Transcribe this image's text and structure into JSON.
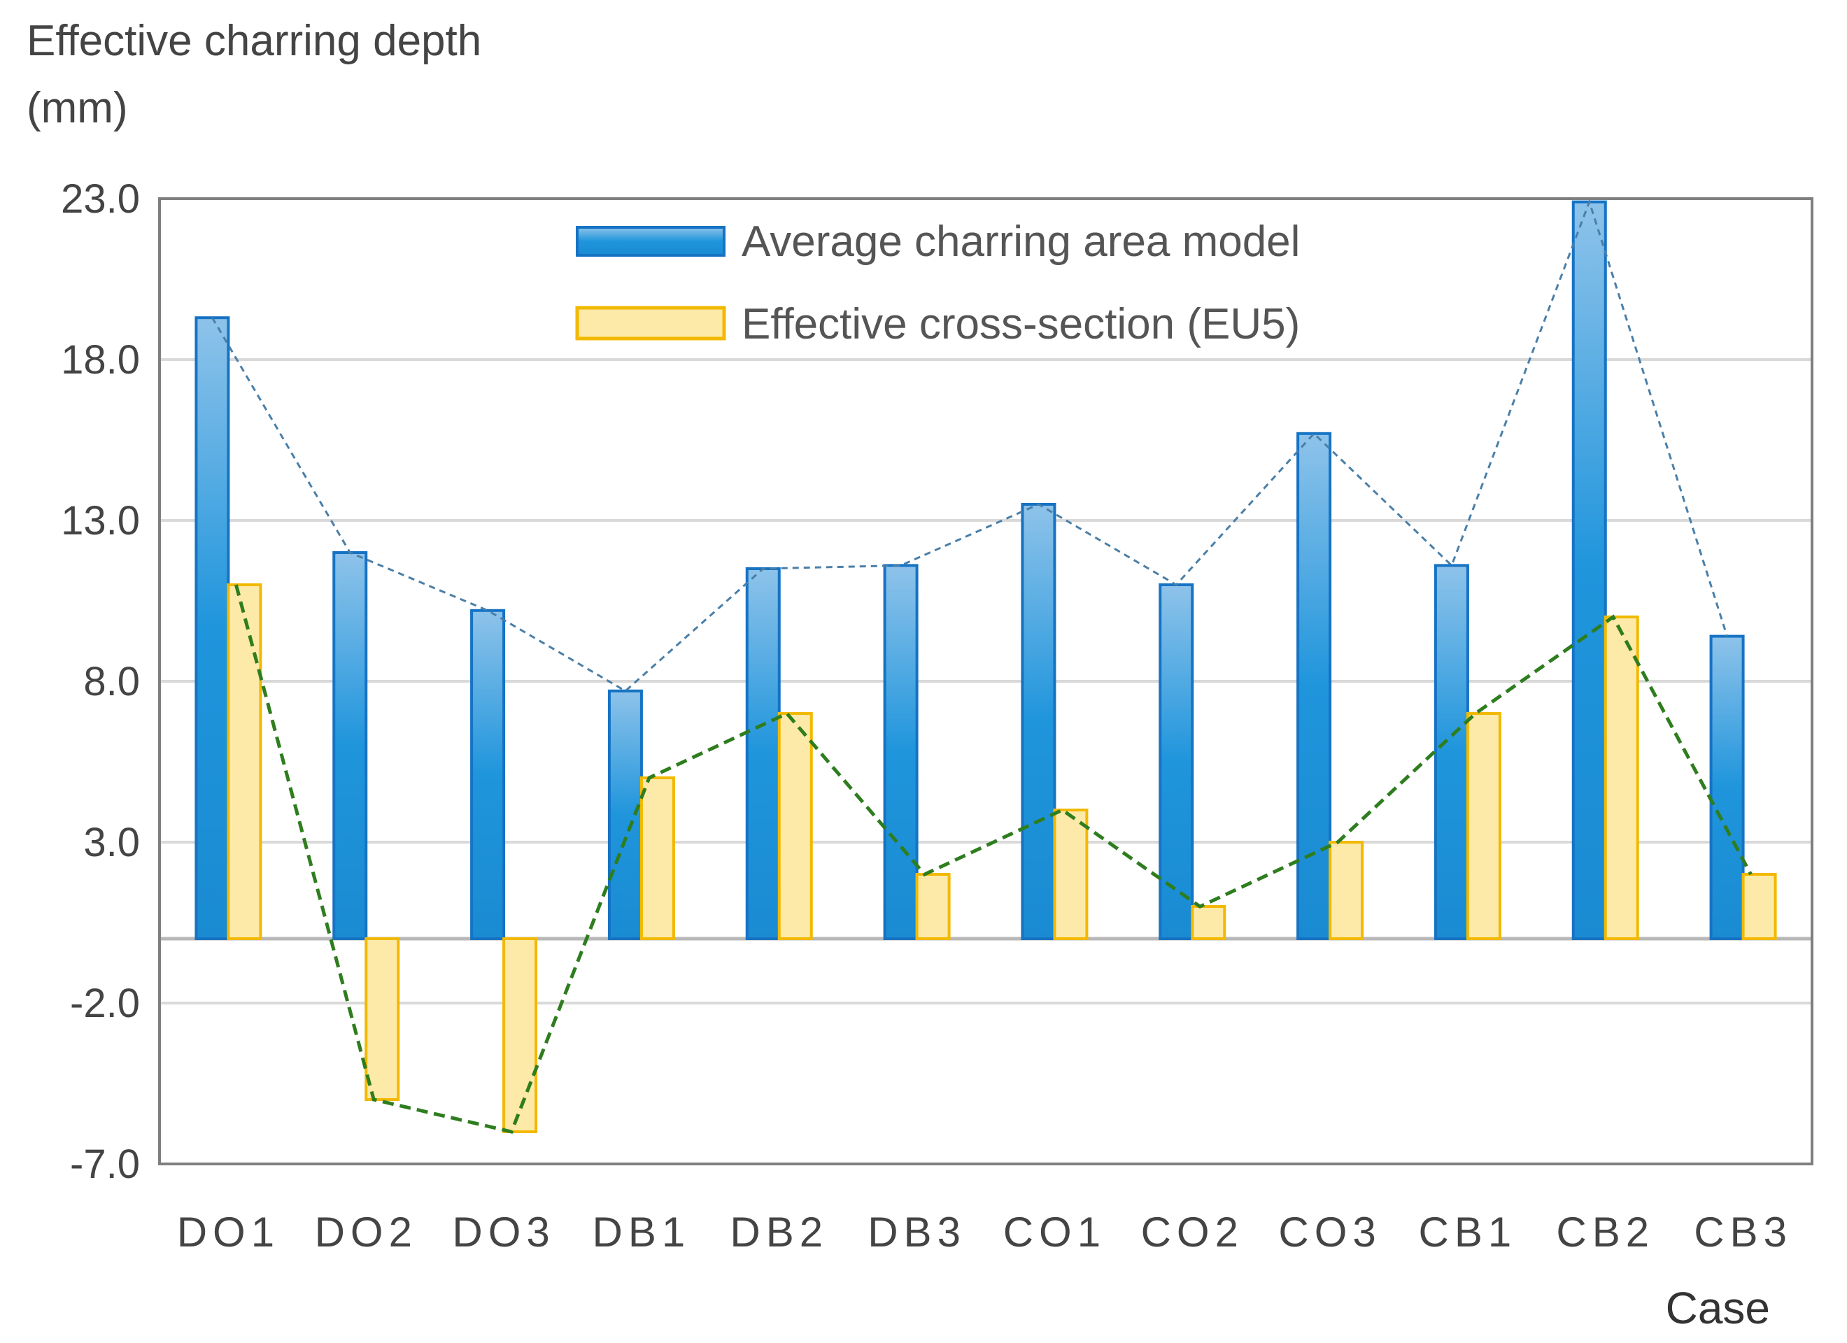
{
  "chart_data": {
    "type": "bar",
    "ylabel_line1": "Effective charring depth",
    "ylabel_line2": "(mm)",
    "xlabel": "Case",
    "ylim": [
      -7,
      23
    ],
    "yticks": [
      "23.0",
      "18.0",
      "13.0",
      "8.0",
      "3.0",
      "-2.0",
      "-7.0"
    ],
    "categories": [
      "DO1",
      "DO2",
      "DO3",
      "DB1",
      "DB2",
      "DB3",
      "CO1",
      "CO2",
      "CO3",
      "CB1",
      "CB2",
      "CB3"
    ],
    "series": [
      {
        "name": "Average charring area model",
        "color": "#1f8fd6",
        "values": [
          19.3,
          12.0,
          10.2,
          7.7,
          11.5,
          11.6,
          13.5,
          11.0,
          15.7,
          11.6,
          22.9,
          9.4
        ]
      },
      {
        "name": "Effective cross-section (EU5)",
        "color": "#f5c518",
        "values": [
          11.0,
          -5.0,
          -6.0,
          5.0,
          7.0,
          2.0,
          4.0,
          1.0,
          3.0,
          7.0,
          10.0,
          2.0
        ]
      }
    ],
    "legend_position": "top-center",
    "grid": true
  }
}
